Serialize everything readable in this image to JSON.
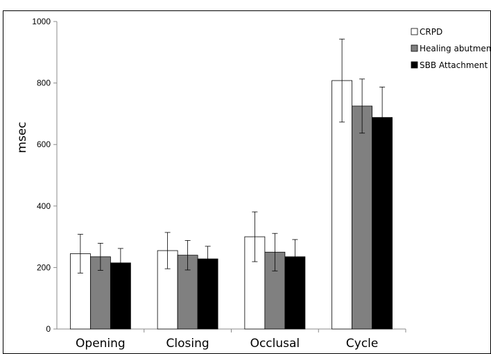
{
  "chart_data": {
    "type": "bar",
    "title": "",
    "xlabel": "",
    "ylabel": "msec",
    "ylim": [
      0,
      1000
    ],
    "yticks": [
      0,
      200,
      400,
      600,
      800,
      1000
    ],
    "grid": false,
    "legend_position": "top-right",
    "categories": [
      "Opening",
      "Closing",
      "Occlusal",
      "Cycle"
    ],
    "series": [
      {
        "name": "CRPD",
        "color": "#ffffff",
        "values": [
          245,
          255,
          300,
          808
        ],
        "errors": [
          63,
          59,
          81,
          135
        ]
      },
      {
        "name": "Healing abutment",
        "color": "#808080",
        "values": [
          235,
          240,
          250,
          725
        ],
        "errors": [
          44,
          48,
          61,
          88
        ]
      },
      {
        "name": "SBB Attachment",
        "color": "#000000",
        "values": [
          215,
          228,
          235,
          688
        ],
        "errors": [
          47,
          41,
          56,
          99
        ]
      }
    ]
  }
}
